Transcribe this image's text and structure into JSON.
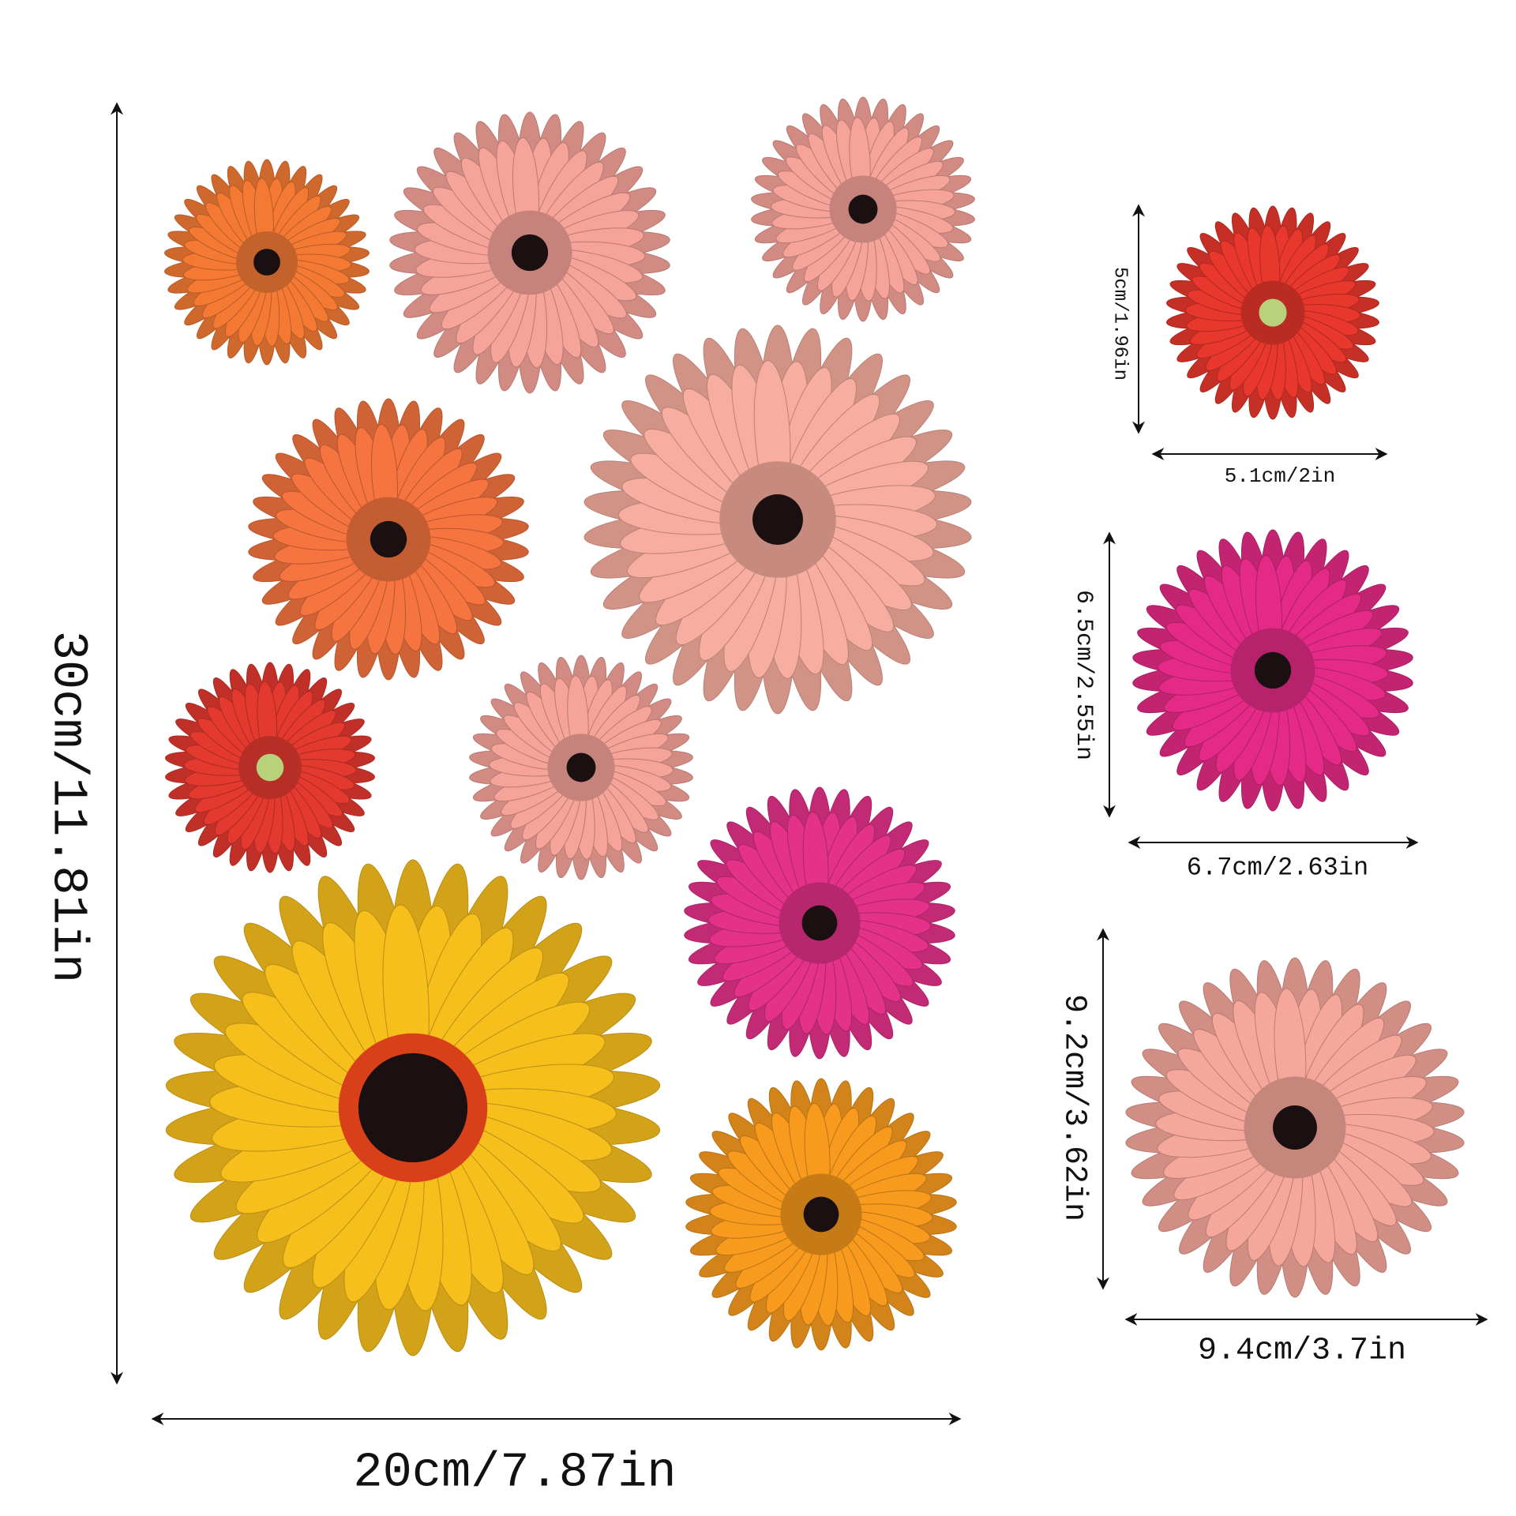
{
  "main_sheet": {
    "height_label": "30cm/11.81in",
    "width_label": "20cm/7.87in"
  },
  "samples": [
    {
      "height_label": "5cm/1.96in",
      "width_label": "5.1cm/2in",
      "color": "#e8372c"
    },
    {
      "height_label": "6.5cm/2.55in",
      "width_label": "6.7cm/2.63in",
      "color": "#e42a86"
    },
    {
      "height_label": "9.2cm/3.62in",
      "width_label": "9.4cm/3.7in",
      "color": "#f6a79b"
    }
  ],
  "flower_colors": [
    "#f47a34",
    "#f6a49a",
    "#f6a49a",
    "#f5743f",
    "#f7ad9f",
    "#e3392f",
    "#f6a49a",
    "#e4318a",
    "#f7bf1c",
    "#f79a1d"
  ]
}
